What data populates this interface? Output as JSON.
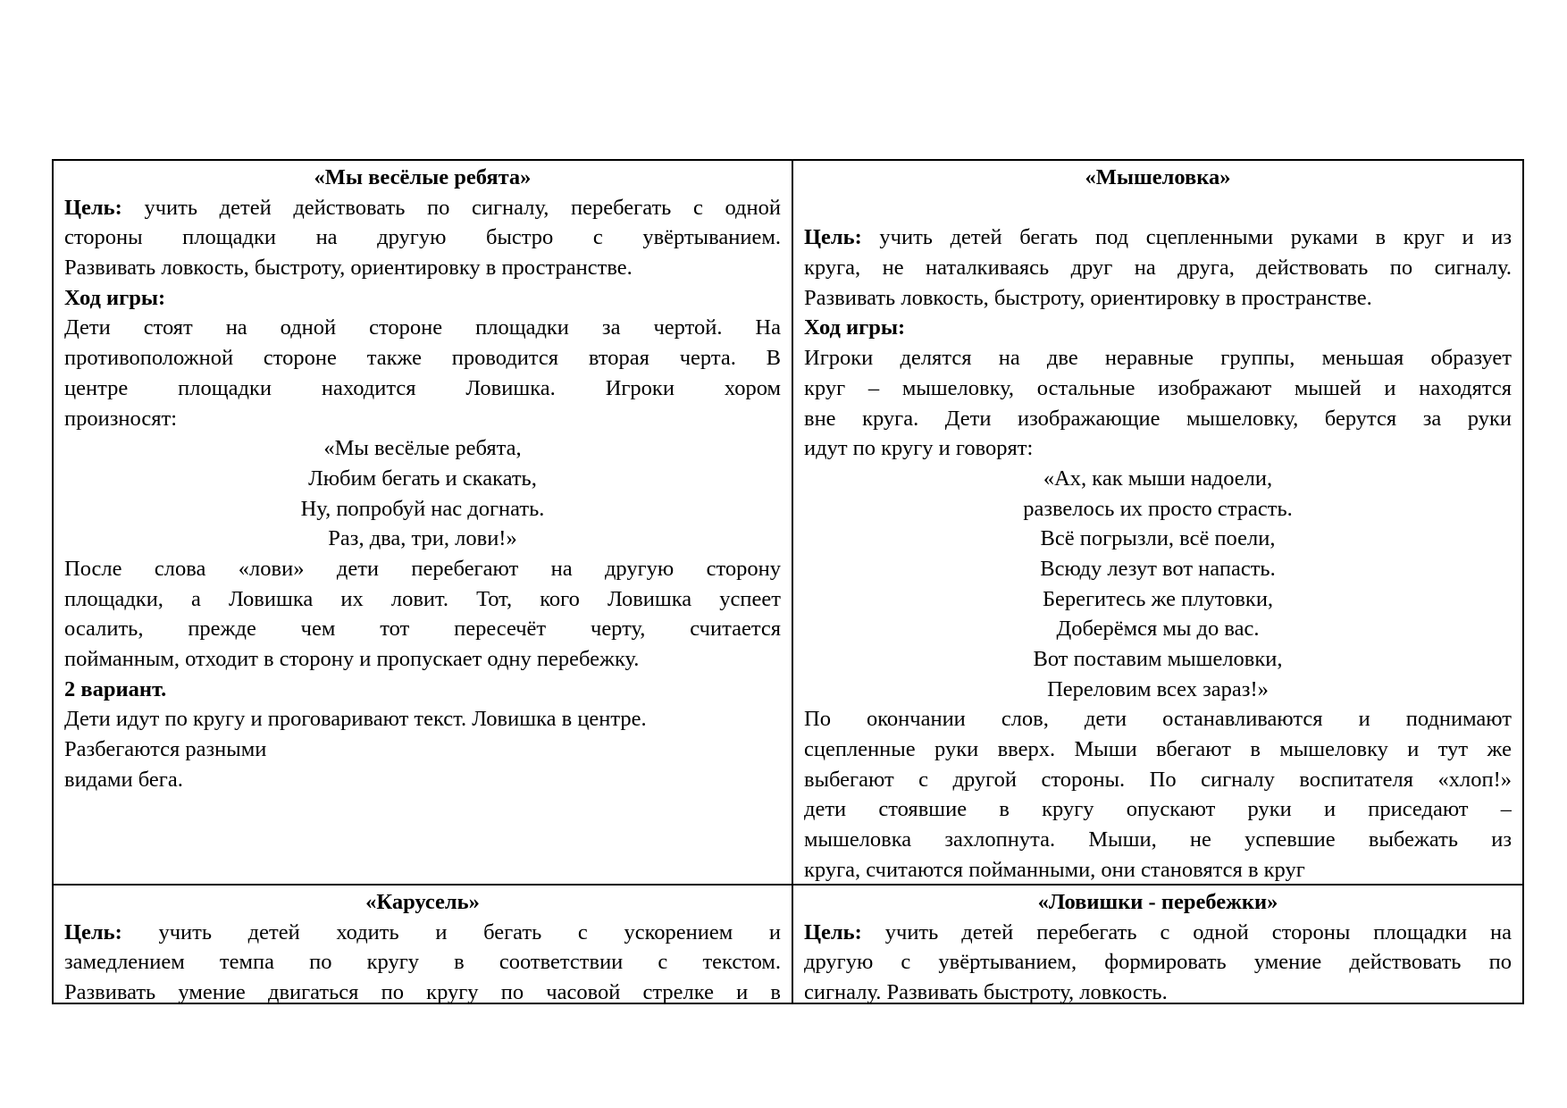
{
  "cells": [
    {
      "title": "«Мы весёлые ребята»",
      "lines": [
        {
          "b": "Цель:",
          "t": " учить детей действовать по сигналу, перебегать с одной",
          "a": "j"
        },
        {
          "t": "стороны площадки на другую быстро с увёртыванием.",
          "a": "j"
        },
        {
          "t": "Развивать ловкость, быстроту, ориентировку в пространстве.",
          "a": "l"
        },
        {
          "b": "Ход игры:",
          "t": "",
          "a": "l"
        },
        {
          "t": "Дети стоят на одной стороне площадки за чертой. На",
          "a": "j"
        },
        {
          "t": "противоположной стороне также проводится вторая черта. В",
          "a": "j"
        },
        {
          "t": "центре площадки находится Ловишка. Игроки хором",
          "a": "j"
        },
        {
          "t": "произносят:",
          "a": "l"
        },
        {
          "t": "«Мы весёлые ребята,",
          "a": "c"
        },
        {
          "t": "Любим бегать и скакать,",
          "a": "c"
        },
        {
          "t": "Ну, попробуй нас догнать.",
          "a": "c"
        },
        {
          "t": "Раз, два, три, лови!»",
          "a": "c"
        },
        {
          "t": "После слова  «лови» дети перебегают на другую сторону",
          "a": "j"
        },
        {
          "t": "площадки, а Ловишка их ловит. Тот, кого Ловишка успеет",
          "a": "j"
        },
        {
          "t": "осалить, прежде чем тот пересечёт черту, считается",
          "a": "j"
        },
        {
          "t": "пойманным, отходит в сторону и пропускает одну перебежку.",
          "a": "l"
        },
        {
          "b": "2 вариант.",
          "t": "",
          "a": "l"
        },
        {
          "t": "Дети идут по кругу и проговаривают текст. Ловишка в центре.",
          "a": "l"
        },
        {
          "t": "Разбегаются разными",
          "a": "l"
        },
        {
          "t": "видами бега.",
          "a": "l"
        }
      ]
    },
    {
      "title": "«Мышеловка»",
      "lines": [
        {
          "t": "",
          "a": "l"
        },
        {
          "b": "Цель:",
          "t": " учить детей бегать под сцепленными руками в круг и из",
          "a": "j"
        },
        {
          "t": "круга, не наталкиваясь друг на друга, действовать по сигналу.",
          "a": "j"
        },
        {
          "t": "Развивать ловкость, быстроту, ориентировку в пространстве.",
          "a": "l"
        },
        {
          "b": "Ход игры:",
          "t": "",
          "a": "l"
        },
        {
          "t": "Игроки делятся на две неравные группы, меньшая образует",
          "a": "j"
        },
        {
          "t": "круг – мышеловку, остальные изображают мышей и находятся",
          "a": "j"
        },
        {
          "t": "вне круга. Дети изображающие мышеловку, берутся за руки",
          "a": "j"
        },
        {
          "t": "идут по кругу и говорят:",
          "a": "l"
        },
        {
          "t": "«Ах, как мыши надоели,",
          "a": "c"
        },
        {
          "t": "развелось их просто страсть.",
          "a": "c"
        },
        {
          "t": "Всё погрызли, всё поели,",
          "a": "c"
        },
        {
          "t": "Всюду лезут вот напасть.",
          "a": "c"
        },
        {
          "t": "Берегитесь же плутовки,",
          "a": "c"
        },
        {
          "t": "Доберёмся мы до вас.",
          "a": "c"
        },
        {
          "t": "Вот поставим мышеловки,",
          "a": "c"
        },
        {
          "t": "Переловим всех зараз!»",
          "a": "c"
        },
        {
          "t": "По окончании слов, дети останавливаются и поднимают",
          "a": "j"
        },
        {
          "t": "сцепленные руки вверх. Мыши вбегают в мышеловку и тут же",
          "a": "j"
        },
        {
          "t": "выбегают с другой стороны. По сигналу воспитателя «хлоп!»",
          "a": "j"
        },
        {
          "t": "дети стоявшие в кругу опускают руки и приседают –",
          "a": "j"
        },
        {
          "t": "мышеловка захлопнута. Мыши, не успевшие выбежать из",
          "a": "j"
        },
        {
          "t": "круга, считаются пойманными, они становятся в круг",
          "a": "l"
        }
      ]
    },
    {
      "title": "«Карусель»",
      "lines": [
        {
          "b": "Цель:",
          "t": " учить детей ходить и бегать с ускорением и",
          "a": "j"
        },
        {
          "t": "замедлением темпа по кругу в соответствии с текстом.",
          "a": "j"
        },
        {
          "t": "Развивать умение двигаться по кругу по часовой стрелке и в",
          "a": "j"
        }
      ]
    },
    {
      "title": "«Ловишки - перебежки»",
      "lines": [
        {
          "b": "Цель:",
          "t": " учить детей перебегать с одной стороны площадки на",
          "a": "j"
        },
        {
          "t": "другую с увёртыванием, формировать умение действовать по",
          "a": "j"
        },
        {
          "t": "сигналу. Развивать быстроту, ловкость.",
          "a": "l"
        }
      ]
    }
  ]
}
